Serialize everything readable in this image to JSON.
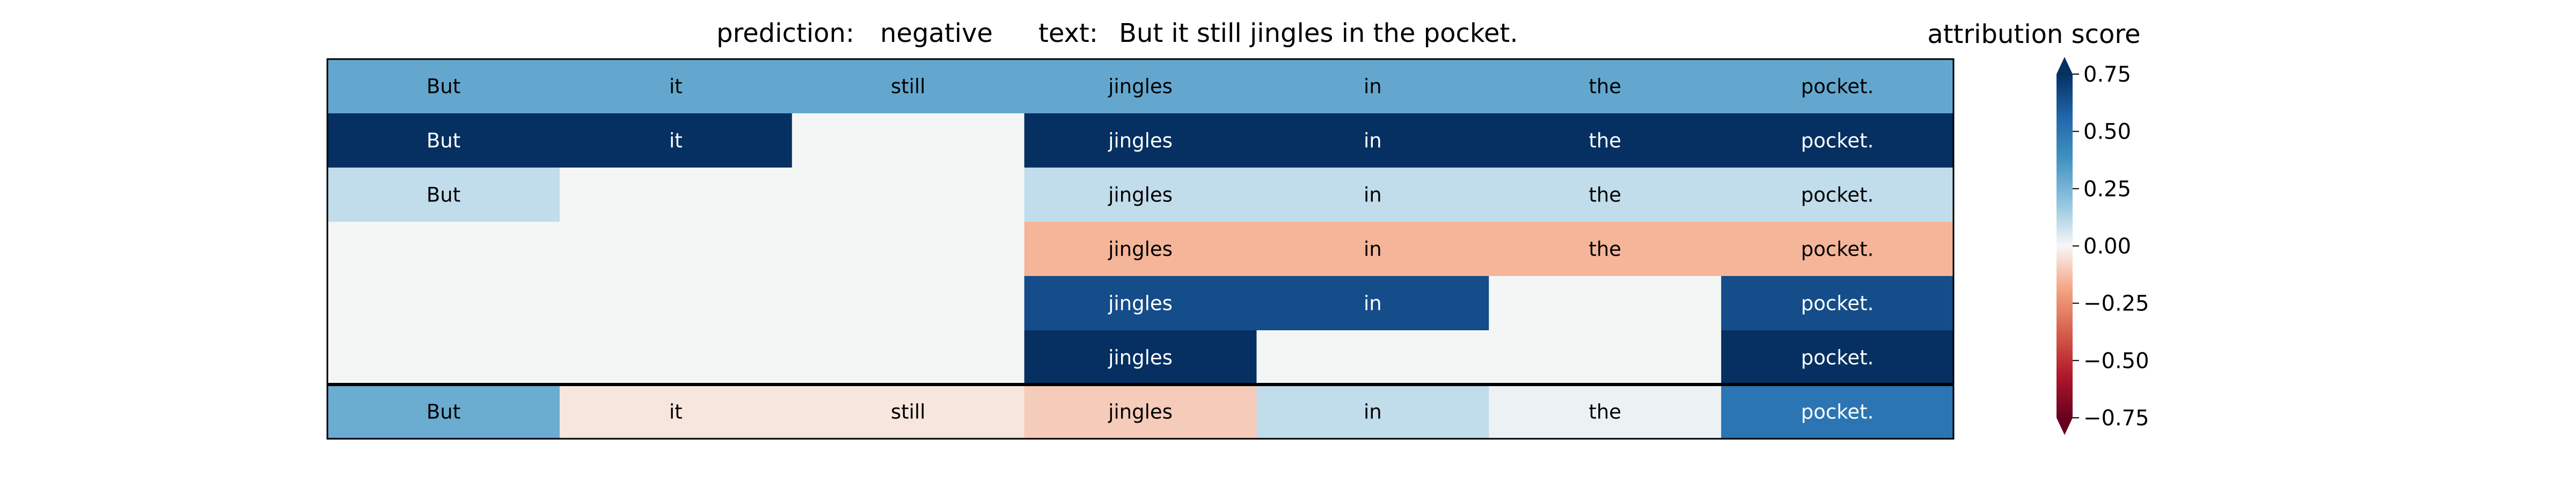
{
  "header": {
    "prediction_label": "prediction:",
    "prediction_value": "negative",
    "text_label": "text:",
    "text_value": "But it still jingles in the pocket."
  },
  "chart_data": {
    "type": "heatmap",
    "tokens": [
      "But",
      "it",
      "still",
      "jingles",
      "in",
      "the",
      "pocket."
    ],
    "rows": [
      [
        0.3,
        0.3,
        0.3,
        0.3,
        0.3,
        0.3,
        0.3
      ],
      [
        0.75,
        0.75,
        null,
        0.75,
        0.75,
        0.75,
        0.75
      ],
      [
        0.1,
        null,
        null,
        0.1,
        0.1,
        0.1,
        0.1
      ],
      [
        null,
        null,
        null,
        -0.15,
        -0.15,
        -0.15,
        -0.15
      ],
      [
        null,
        null,
        null,
        0.65,
        0.65,
        null,
        0.65
      ],
      [
        null,
        null,
        null,
        0.9,
        null,
        null,
        0.9
      ]
    ],
    "aggregate_row": [
      0.28,
      -0.04,
      -0.04,
      -0.1,
      0.1,
      0.02,
      0.5
    ],
    "colorbar": {
      "title": "attribution score",
      "ticks": [
        "0.75",
        "0.50",
        "0.25",
        "0.00",
        "−0.25",
        "−0.50",
        "−0.75"
      ],
      "tick_values": [
        0.75,
        0.5,
        0.25,
        0.0,
        -0.25,
        -0.5,
        -0.75
      ],
      "range": [
        -0.75,
        0.75
      ],
      "colormap": "RdBu",
      "extend": "both"
    },
    "empty_cell_color": "#f4f6f6"
  }
}
